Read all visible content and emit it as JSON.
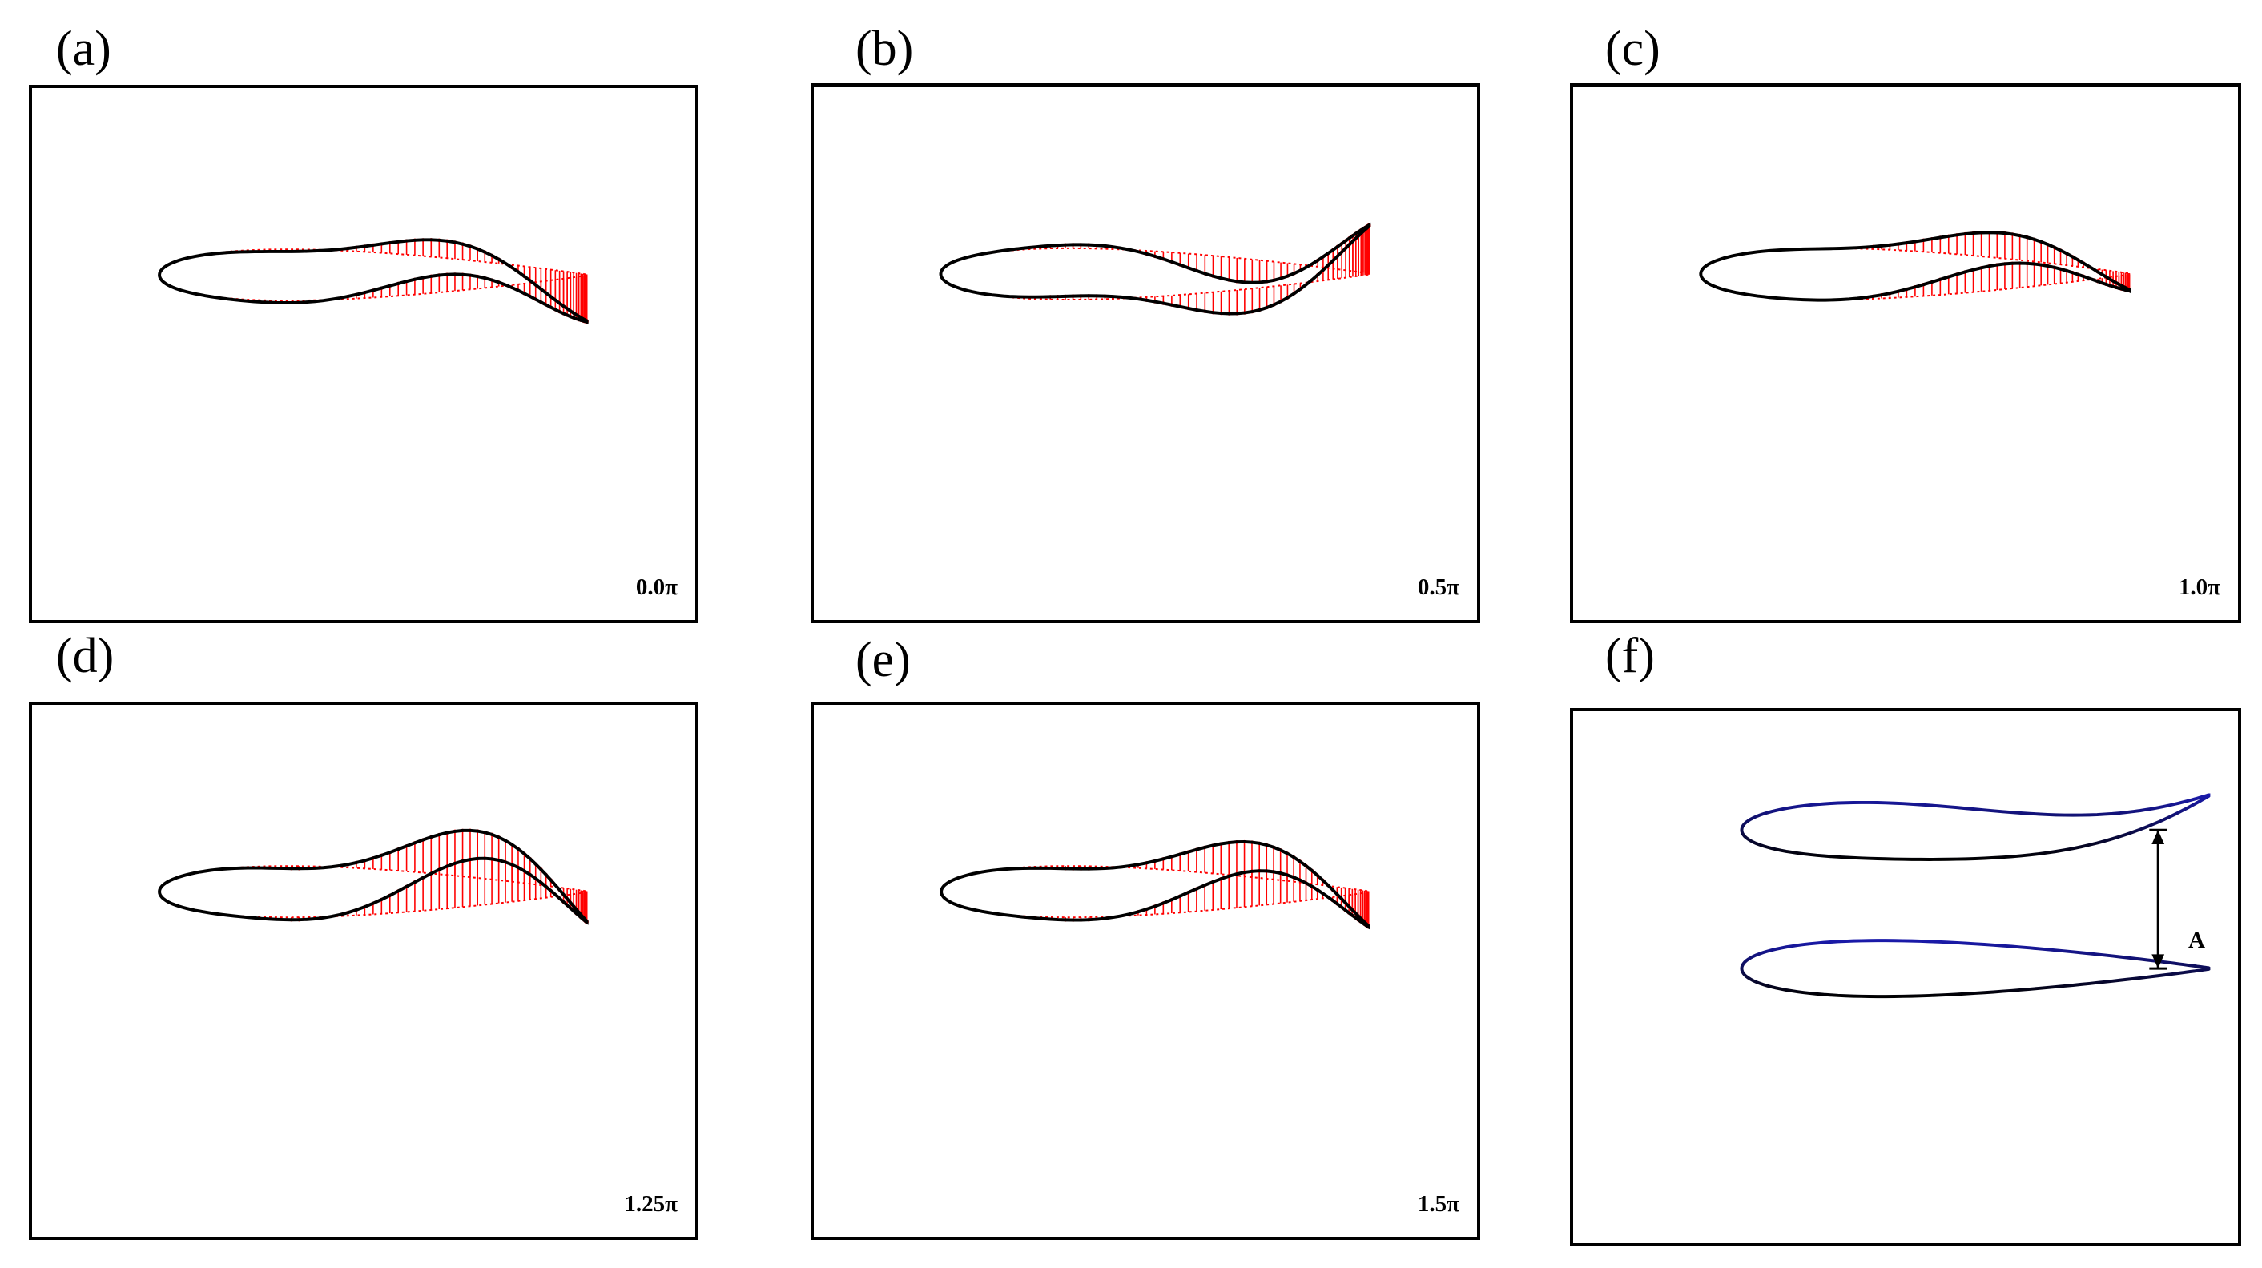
{
  "panels": [
    {
      "label": "(a)",
      "phase": "0.0π"
    },
    {
      "label": "(b)",
      "phase": "0.5π"
    },
    {
      "label": "(c)",
      "phase": "1.0π"
    },
    {
      "label": "(d)",
      "phase": "1.25π"
    },
    {
      "label": "(e)",
      "phase": "1.5π"
    },
    {
      "label": "(f)",
      "amplitude_label": "A"
    }
  ],
  "colors": {
    "foil_outline": "#000000",
    "deformation_vectors": "#ff0000",
    "reference_foil": "#1a1aaa"
  }
}
